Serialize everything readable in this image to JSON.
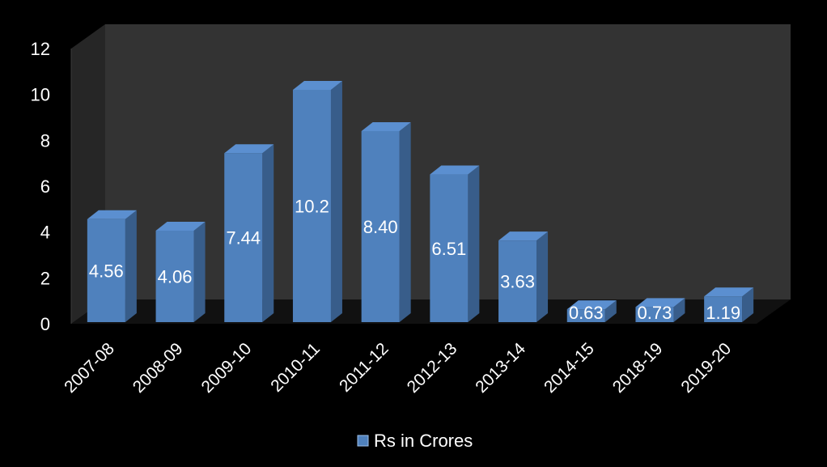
{
  "chart_data": {
    "type": "bar",
    "title": "",
    "xlabel": "",
    "ylabel": "",
    "categories": [
      "2007-08",
      "2008-09",
      "2009-10",
      "2010-11",
      "2011-12",
      "2012-13",
      "2013-14",
      "2014-15",
      "2018-19",
      "2019-20"
    ],
    "series": [
      {
        "name": "Rs in Crores",
        "values": [
          4.56,
          4.06,
          7.44,
          10.2,
          8.4,
          6.51,
          3.63,
          0.63,
          0.73,
          1.19
        ],
        "data_labels": [
          "4.56",
          "4.06",
          "7.44",
          "10.2",
          "8.40",
          "6.51",
          "3.63",
          "0.63",
          "0.73",
          "1.19"
        ]
      }
    ],
    "ylim": [
      0,
      12
    ],
    "yticks": [
      0,
      2,
      4,
      6,
      8,
      10,
      12
    ],
    "ytick_labels": [
      "0",
      "2",
      "4",
      "6",
      "8",
      "10",
      "12"
    ],
    "grid": false,
    "three_d": true,
    "legend_position": "bottom",
    "colors": {
      "background": "#000000",
      "back_wall": "#333333",
      "floor": "#111111",
      "bar_front": "#4f81bd",
      "bar_side": "#385d8a",
      "bar_top": "#5b8fd0",
      "text": "#ffffff"
    }
  }
}
